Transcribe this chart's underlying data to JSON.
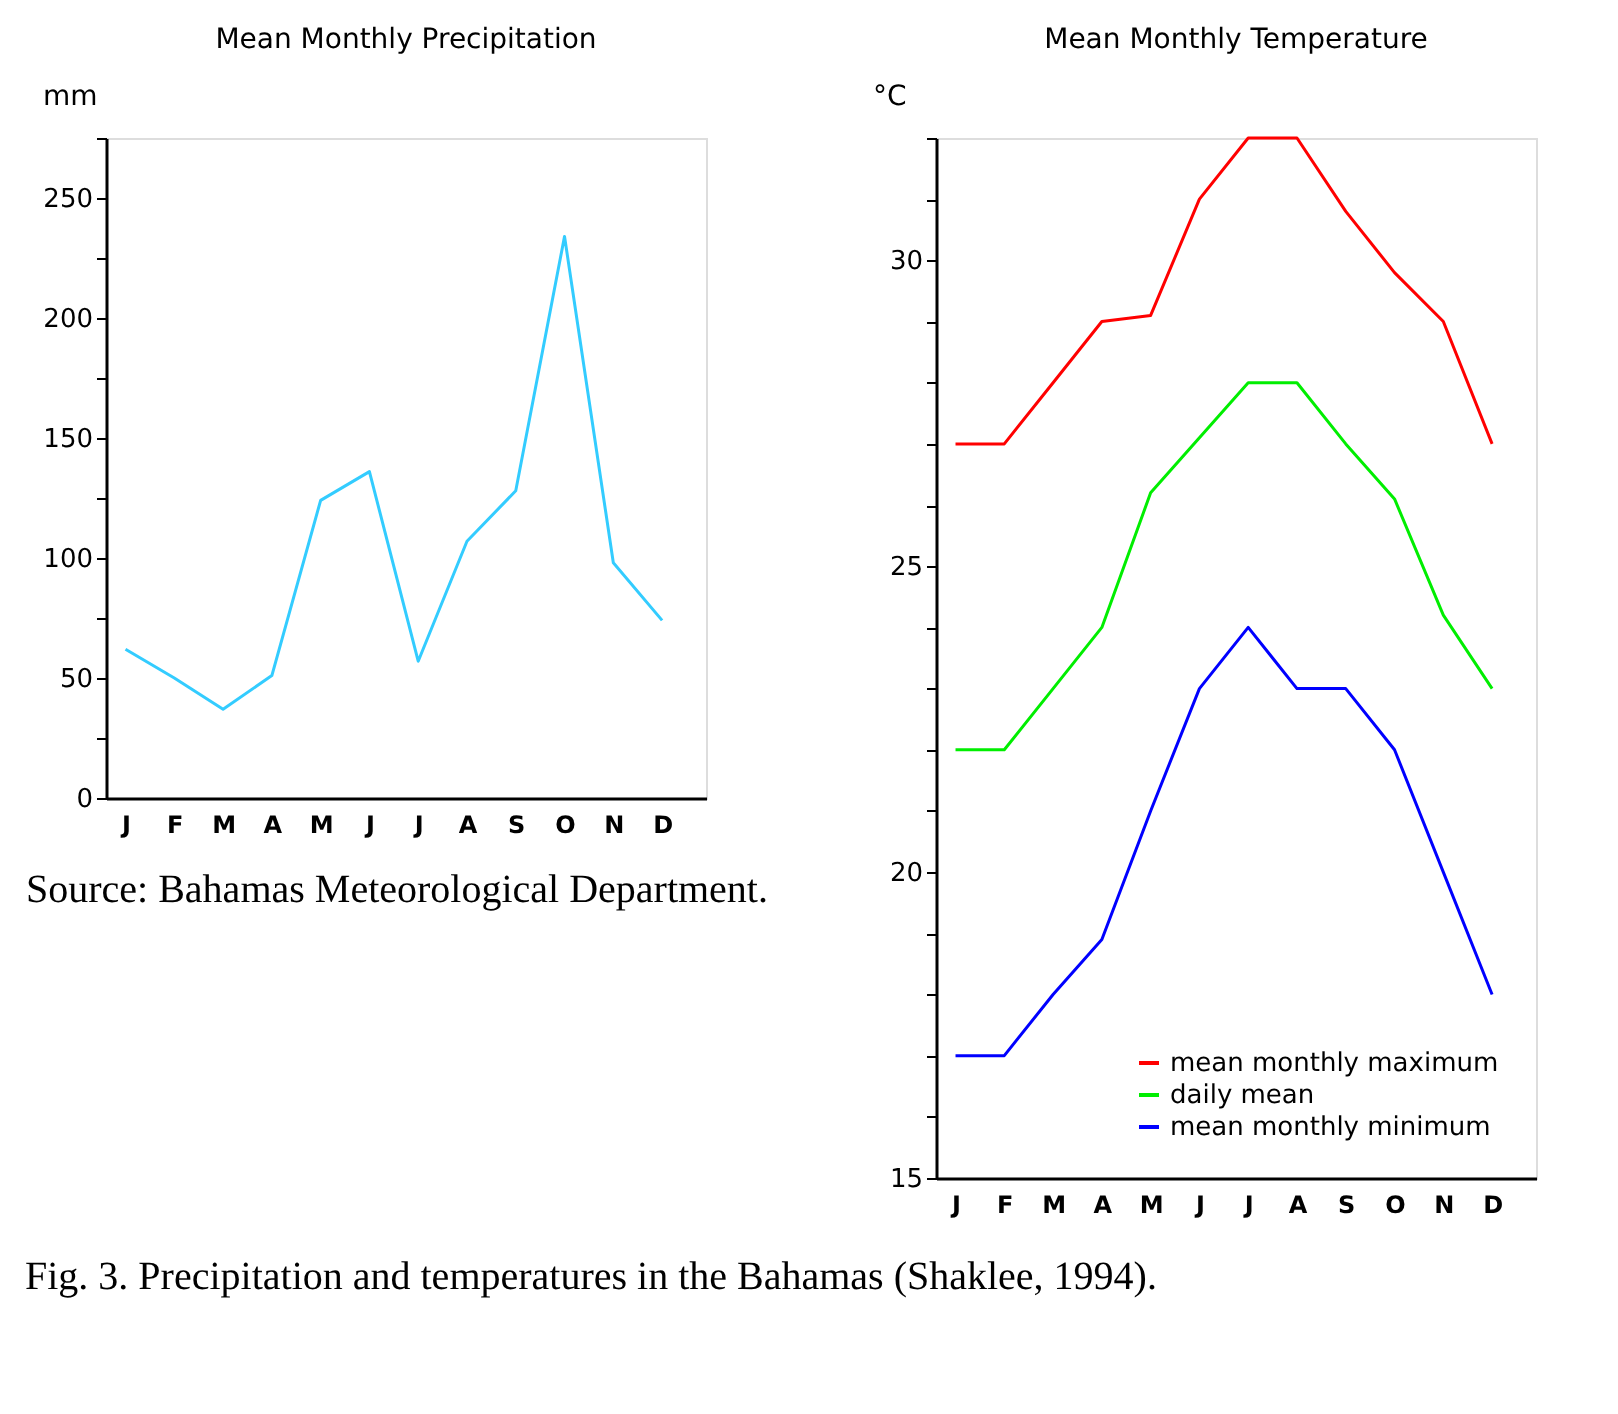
{
  "chart_data": [
    {
      "type": "line",
      "title": "Mean Monthly Precipitation",
      "ylabel": "mm",
      "categories": [
        "J",
        "F",
        "M",
        "A",
        "M",
        "J",
        "J",
        "A",
        "S",
        "O",
        "N",
        "D"
      ],
      "series": [
        {
          "color": "#33ccff",
          "values": [
            62,
            50,
            37,
            51,
            124,
            136,
            57,
            107,
            128,
            234,
            98,
            74
          ]
        }
      ],
      "ylim": [
        0,
        275
      ],
      "yticks": [
        0,
        {
          "value": 25,
          "label": null
        },
        50,
        {
          "value": 75,
          "label": null
        },
        100,
        {
          "value": 125,
          "label": null
        },
        150,
        {
          "value": 175,
          "label": null
        },
        200,
        {
          "value": 225,
          "label": null
        },
        250,
        {
          "value": 275,
          "label": null
        }
      ],
      "grid": false,
      "legend": false,
      "annotations": [
        "Source: Bahamas Meteorological Department."
      ]
    },
    {
      "type": "line",
      "title": "Mean Monthly Temperature",
      "ylabel": "°C",
      "categories": [
        "J",
        "F",
        "M",
        "A",
        "M",
        "J",
        "J",
        "A",
        "S",
        "O",
        "N",
        "D"
      ],
      "series": [
        {
          "name": "mean monthly maximum",
          "color": "#ff0000",
          "values": [
            27,
            27,
            28,
            29,
            29.1,
            31,
            32,
            32,
            30.8,
            29.8,
            29,
            27
          ]
        },
        {
          "name": "daily mean",
          "color": "#00ee00",
          "values": [
            22,
            22,
            23,
            24,
            26.2,
            27.1,
            28,
            28,
            27,
            26.1,
            24.2,
            23
          ]
        },
        {
          "name": "mean monthly minimum",
          "color": "#0000ff",
          "values": [
            17,
            17,
            18,
            18.9,
            21,
            23,
            24,
            23,
            23,
            22,
            20,
            18
          ]
        }
      ],
      "ylim": [
        15,
        32
      ],
      "yticks": [
        15,
        {
          "value": 16,
          "label": null
        },
        {
          "value": 17,
          "label": null
        },
        {
          "value": 18,
          "label": null
        },
        {
          "value": 19,
          "label": null
        },
        20,
        {
          "value": 21,
          "label": null
        },
        {
          "value": 22,
          "label": null
        },
        {
          "value": 23,
          "label": null
        },
        {
          "value": 24,
          "label": null
        },
        25,
        {
          "value": 26,
          "label": null
        },
        {
          "value": 27,
          "label": null
        },
        {
          "value": 28,
          "label": null
        },
        {
          "value": 29,
          "label": null
        },
        30,
        {
          "value": 31,
          "label": null
        },
        {
          "value": 32,
          "label": null
        }
      ],
      "grid": false,
      "legend": "bottom right",
      "annotations": [
        "Fig. 3. Precipitation and temperatures in the Bahamas (Shaklee, 1994)."
      ]
    }
  ]
}
